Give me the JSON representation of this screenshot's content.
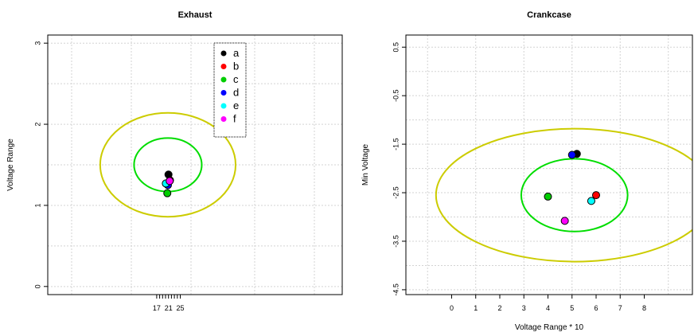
{
  "chart_data": [
    {
      "type": "scatter",
      "title": "Exhaust",
      "xlabel": "",
      "ylabel": "Voltage Range",
      "xlim": [
        -20,
        80
      ],
      "ylim": [
        -0.1,
        3.1
      ],
      "xticks": [
        17,
        18,
        19,
        20,
        21,
        22,
        23,
        24,
        25
      ],
      "xtick_labels": [
        "17",
        "",
        "",
        "",
        "21",
        "",
        "",
        "",
        "25"
      ],
      "yticks": [
        0,
        1,
        2,
        3
      ],
      "ytick_labels": [
        "0",
        "1",
        "2",
        "3"
      ],
      "grid": true,
      "series": [
        {
          "name": "a",
          "color": "#000000",
          "x": 21.0,
          "y": 1.38
        },
        {
          "name": "b",
          "color": "#ff0000",
          "x": 21.5,
          "y": 1.31
        },
        {
          "name": "c",
          "color": "#00cd00",
          "x": 20.6,
          "y": 1.15
        },
        {
          "name": "d",
          "color": "#0000ff",
          "x": 20.8,
          "y": 1.25
        },
        {
          "name": "e",
          "color": "#00ffff",
          "x": 20.1,
          "y": 1.27
        },
        {
          "name": "f",
          "color": "#ff00ff",
          "x": 21.4,
          "y": 1.3
        }
      ],
      "circles": [
        {
          "cx": 20.8,
          "cy": 1.5,
          "rx": 11.5,
          "ry": 0.33,
          "color": "#00dd00"
        },
        {
          "cx": 20.8,
          "cy": 1.5,
          "rx": 23.0,
          "ry": 0.64,
          "color": "#cccc00"
        }
      ],
      "legend": {
        "position": "top-right",
        "entries": [
          "a",
          "b",
          "c",
          "d",
          "e",
          "f"
        ]
      }
    },
    {
      "type": "scatter",
      "title": "Crankcase",
      "xlabel": "Voltage Range * 10",
      "ylabel": "Min Voltage",
      "xlim": [
        -1.9,
        10.0
      ],
      "ylim": [
        -4.6,
        0.75
      ],
      "xticks": [
        0,
        1,
        2,
        3,
        4,
        5,
        6,
        7,
        8
      ],
      "xtick_labels": [
        "0",
        "1",
        "2",
        "3",
        "4",
        "5",
        "6",
        "7",
        "8"
      ],
      "yticks": [
        0.5,
        -0.5,
        -1.5,
        -2.5,
        -3.5,
        -4.5
      ],
      "ytick_labels": [
        "0.5",
        "-0.5",
        "-1.5",
        "-2.5",
        "-3.5",
        "-4.5"
      ],
      "grid": true,
      "series": [
        {
          "name": "a",
          "color": "#000000",
          "x": 5.2,
          "y": -1.7
        },
        {
          "name": "b",
          "color": "#ff0000",
          "x": 6.0,
          "y": -2.55
        },
        {
          "name": "c",
          "color": "#00cd00",
          "x": 4.0,
          "y": -2.58
        },
        {
          "name": "d",
          "color": "#0000ff",
          "x": 5.0,
          "y": -1.72
        },
        {
          "name": "e",
          "color": "#00ffff",
          "x": 5.8,
          "y": -2.67
        },
        {
          "name": "f",
          "color": "#ff00ff",
          "x": 4.7,
          "y": -3.08
        }
      ],
      "circles": [
        {
          "cx": 5.1,
          "cy": -2.55,
          "rx": 2.21,
          "ry": 0.75,
          "color": "#00dd00"
        },
        {
          "cx": 5.1,
          "cy": -2.55,
          "rx": 5.75,
          "ry": 1.37,
          "color": "#cccc00"
        }
      ]
    }
  ]
}
